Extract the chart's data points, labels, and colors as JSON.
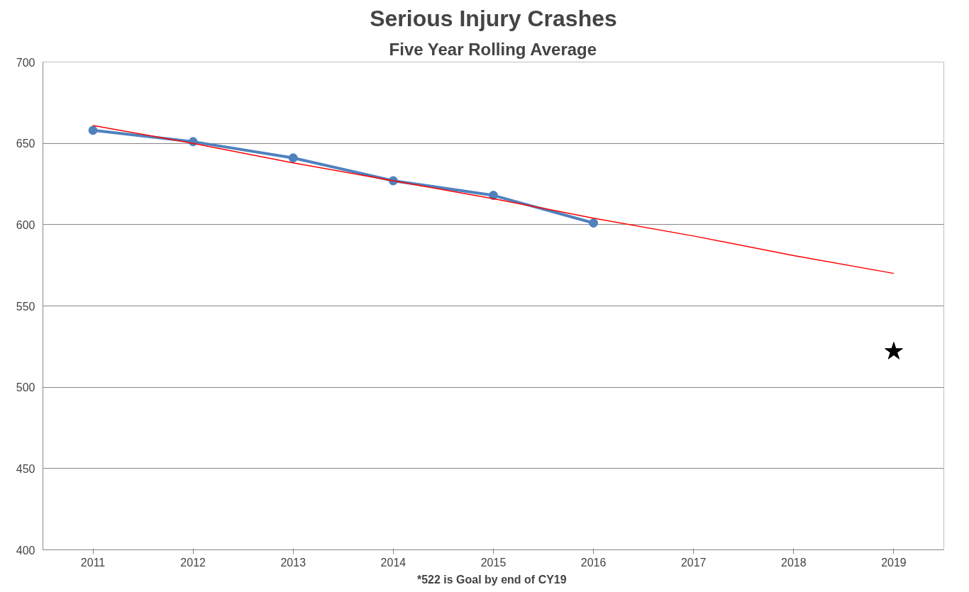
{
  "chart_data": {
    "type": "line",
    "title": "Serious Injury Crashes",
    "subtitle": "Five Year Rolling Average",
    "categories": [
      "2011",
      "2012",
      "2013",
      "2014",
      "2015",
      "2016",
      "2017",
      "2018",
      "2019"
    ],
    "series": [
      {
        "color": "#4f81bd",
        "values": [
          658,
          651,
          641,
          627,
          618,
          601,
          null,
          null,
          null
        ],
        "marker": "circle"
      },
      {
        "type": "line",
        "color": "#ff0000",
        "values": [
          661,
          650,
          638,
          627,
          616,
          604,
          593,
          581,
          570
        ],
        "marker": "none"
      },
      {
        "type": "scatter",
        "color": "#000000",
        "values": [
          null,
          null,
          null,
          null,
          null,
          null,
          null,
          null,
          522
        ],
        "marker": "star"
      }
    ],
    "ylim": [
      400,
      700
    ],
    "yticks": [
      400,
      450,
      500,
      550,
      600,
      650,
      700
    ],
    "grid": "y",
    "annotations": [
      "*522  is Goal by end of CY19"
    ]
  }
}
